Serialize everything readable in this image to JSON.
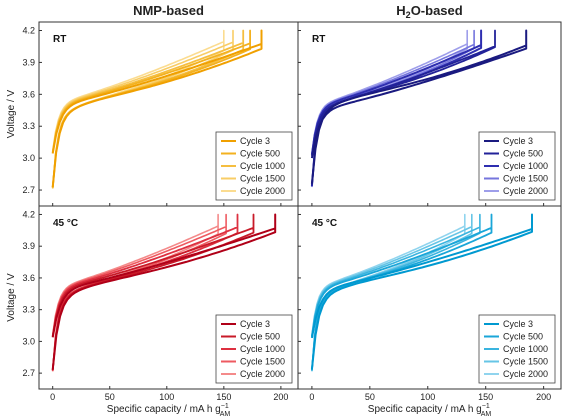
{
  "figure": {
    "col_titles": [
      "NMP-based",
      "H<sub>2</sub>O-based"
    ],
    "col_title_parts": [
      {
        "main": "NMP-based",
        "sub": "",
        "rest": ""
      },
      {
        "main": "H",
        "sub": "2",
        "rest": "O-based"
      }
    ],
    "xlabel": {
      "main": "Specific capacity / mA h g",
      "sup": "−1",
      "sub": "AM"
    },
    "ylabel": "Voltage / V"
  },
  "chart_data": [
    {
      "type": "line",
      "id": "nmp_rt",
      "condition": "RT",
      "xlim": [
        -12,
        215
      ],
      "ylim": [
        2.55,
        4.28
      ],
      "xticks": [
        0,
        50,
        100,
        150,
        200
      ],
      "yticks": [
        2.7,
        3.0,
        3.3,
        3.6,
        3.9,
        4.2
      ],
      "series": [
        {
          "name": "Cycle 3",
          "color": "#F0A000",
          "width": 2.0,
          "capacity": 183,
          "hyst": 0.32
        },
        {
          "name": "Cycle 500",
          "color": "#F3B11F",
          "width": 1.8,
          "capacity": 173,
          "hyst": 0.31
        },
        {
          "name": "Cycle 1000",
          "color": "#F5BE40",
          "width": 1.8,
          "capacity": 167,
          "hyst": 0.3
        },
        {
          "name": "Cycle 1500",
          "color": "#F8CD66",
          "width": 1.6,
          "capacity": 158,
          "hyst": 0.29
        },
        {
          "name": "Cycle 2000",
          "color": "#FBDC90",
          "width": 1.6,
          "capacity": 150,
          "hyst": 0.28
        }
      ]
    },
    {
      "type": "line",
      "id": "h2o_rt",
      "condition": "RT",
      "xlim": [
        -12,
        215
      ],
      "ylim": [
        2.55,
        4.28
      ],
      "xticks": [
        0,
        50,
        100,
        150,
        200
      ],
      "yticks": [
        2.7,
        3.0,
        3.3,
        3.6,
        3.9,
        4.2
      ],
      "series": [
        {
          "name": "Cycle 3",
          "color": "#1A1A80",
          "width": 2.0,
          "capacity": 185,
          "hyst": 0.4
        },
        {
          "name": "Cycle 500",
          "color": "#222299",
          "width": 1.8,
          "capacity": 158,
          "hyst": 0.36
        },
        {
          "name": "Cycle 1000",
          "color": "#2E2EB0",
          "width": 2.0,
          "capacity": 146,
          "hyst": 0.34
        },
        {
          "name": "Cycle 1500",
          "color": "#7575DD",
          "width": 1.6,
          "capacity": 140,
          "hyst": 0.33
        },
        {
          "name": "Cycle 2000",
          "color": "#9E9EEA",
          "width": 1.6,
          "capacity": 134,
          "hyst": 0.32
        }
      ]
    },
    {
      "type": "line",
      "id": "nmp_45",
      "condition": "45 °C",
      "xlim": [
        -12,
        215
      ],
      "ylim": [
        2.55,
        4.28
      ],
      "xticks": [
        0,
        50,
        100,
        150,
        200
      ],
      "yticks": [
        2.7,
        3.0,
        3.3,
        3.6,
        3.9,
        4.2
      ],
      "series": [
        {
          "name": "Cycle 3",
          "color": "#B00018",
          "width": 2.0,
          "capacity": 195,
          "hyst": 0.33
        },
        {
          "name": "Cycle 500",
          "color": "#C81A28",
          "width": 1.8,
          "capacity": 176,
          "hyst": 0.32
        },
        {
          "name": "Cycle 1000",
          "color": "#DD3040",
          "width": 1.8,
          "capacity": 162,
          "hyst": 0.31
        },
        {
          "name": "Cycle 1500",
          "color": "#EE5A60",
          "width": 1.6,
          "capacity": 152,
          "hyst": 0.3
        },
        {
          "name": "Cycle 2000",
          "color": "#F48A8A",
          "width": 1.6,
          "capacity": 145,
          "hyst": 0.29
        }
      ]
    },
    {
      "type": "line",
      "id": "h2o_45",
      "condition": "45 °C",
      "xlim": [
        -12,
        215
      ],
      "ylim": [
        2.55,
        4.28
      ],
      "xticks": [
        0,
        50,
        100,
        150,
        200
      ],
      "yticks": [
        2.7,
        3.0,
        3.3,
        3.6,
        3.9,
        4.2
      ],
      "series": [
        {
          "name": "Cycle 3",
          "color": "#0099D0",
          "width": 2.0,
          "capacity": 190,
          "hyst": 0.34
        },
        {
          "name": "Cycle 500",
          "color": "#1AA6D8",
          "width": 1.8,
          "capacity": 155,
          "hyst": 0.32
        },
        {
          "name": "Cycle 1000",
          "color": "#3AB4DF",
          "width": 1.6,
          "capacity": 145,
          "hyst": 0.31
        },
        {
          "name": "Cycle 1500",
          "color": "#66C5E6",
          "width": 1.6,
          "capacity": 138,
          "hyst": 0.3
        },
        {
          "name": "Cycle 2000",
          "color": "#90D4EE",
          "width": 1.6,
          "capacity": 132,
          "hyst": 0.29
        }
      ]
    }
  ]
}
